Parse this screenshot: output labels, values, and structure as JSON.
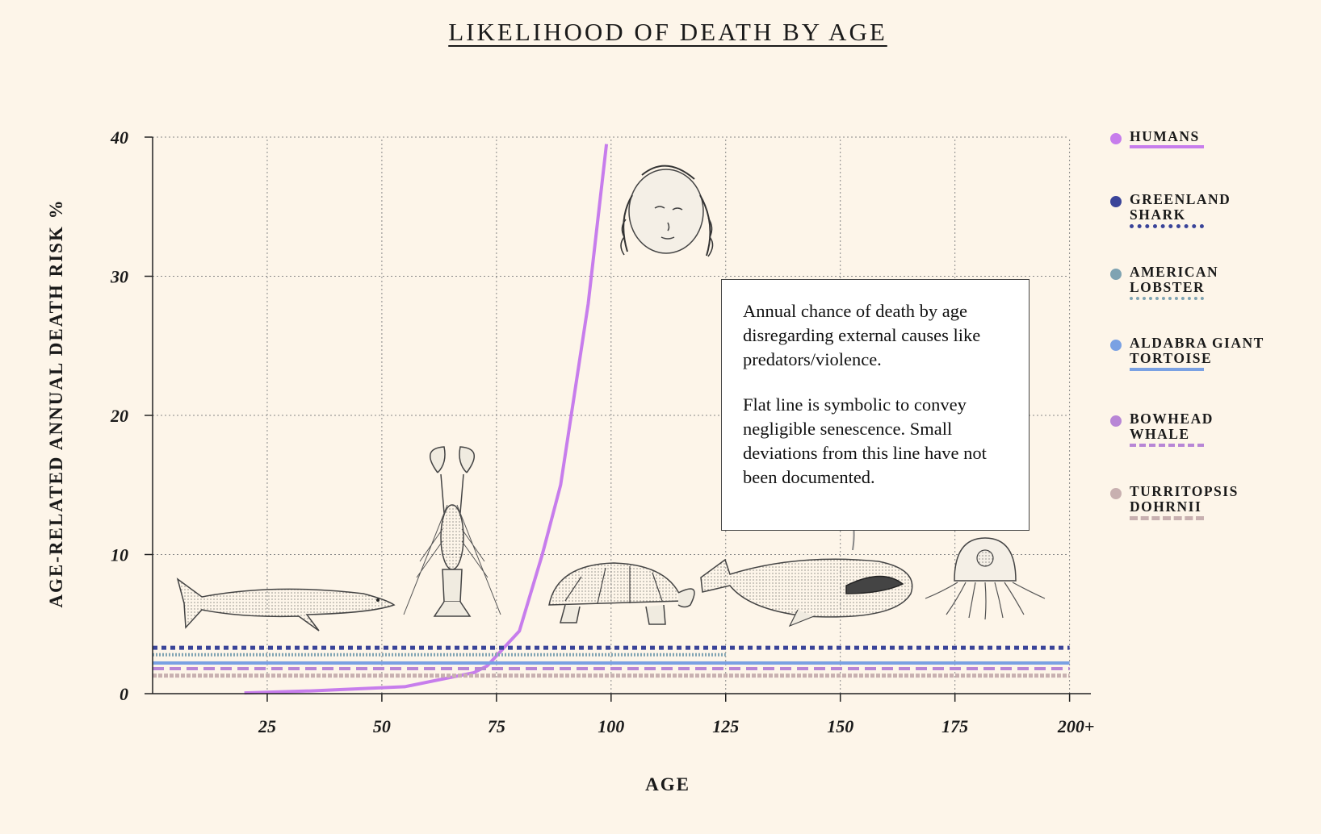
{
  "chart_data": {
    "type": "line",
    "title": "LIKELIHOOD OF DEATH BY AGE",
    "xlabel": "AGE",
    "ylabel": "AGE-RELATED ANNUAL DEATH RISK %",
    "xlim": [
      0,
      205
    ],
    "ylim": [
      0,
      40
    ],
    "x_ticks": [
      25,
      50,
      75,
      100,
      125,
      150,
      175,
      200
    ],
    "x_tick_labels": [
      "25",
      "50",
      "75",
      "100",
      "125",
      "150",
      "175",
      "200+"
    ],
    "y_ticks": [
      0,
      10,
      20,
      30,
      40
    ],
    "y_tick_labels": [
      "0",
      "10",
      "20",
      "30",
      "40"
    ],
    "grid": true,
    "legend_position": "right",
    "series": [
      {
        "name": "HUMANS",
        "color": "#c77dec",
        "style": "solid",
        "x": [
          20,
          35,
          55,
          70,
          73,
          80,
          85,
          89,
          95,
          99
        ],
        "y": [
          0.05,
          0.2,
          0.5,
          1.5,
          2.0,
          4.5,
          10.0,
          15.0,
          28.0,
          39.5
        ]
      },
      {
        "name": "GREENLAND SHARK",
        "color": "#3a4499",
        "style": "dotted-square",
        "x": [
          0,
          200
        ],
        "y": [
          3.3,
          3.3
        ]
      },
      {
        "name": "AMERICAN LOBSTER",
        "color": "#7fa3b2",
        "style": "dotted",
        "x": [
          0,
          125
        ],
        "y": [
          2.8,
          2.8
        ]
      },
      {
        "name": "ALDABRA GIANT TORTOISE",
        "color": "#7aa1e3",
        "style": "solid",
        "x": [
          0,
          200
        ],
        "y": [
          2.2,
          2.2
        ]
      },
      {
        "name": "BOWHEAD WHALE",
        "color": "#b886d6",
        "style": "dashed",
        "x": [
          0,
          200
        ],
        "y": [
          1.8,
          1.8
        ]
      },
      {
        "name": "TURRITOPSIS DOHRNII",
        "color": "#c8b0b0",
        "style": "dashed-double",
        "x": [
          0,
          200
        ],
        "y": [
          1.3,
          1.3
        ]
      }
    ],
    "annotation": [
      "Annual chance of death by age disregarding external causes like predators/violence.",
      "Flat line is symbolic to convey negligible senescence. Small deviations from this line have not been documented."
    ]
  },
  "legend": [
    {
      "label": "HUMANS",
      "color": "#c77dec",
      "style": "solid"
    },
    {
      "label": "GREENLAND SHARK",
      "color": "#3a4499",
      "style": "dotted-square"
    },
    {
      "label": "AMERICAN LOBSTER",
      "color": "#7fa3b2",
      "style": "dotted"
    },
    {
      "label": "ALDABRA GIANT TORTOISE",
      "color": "#7aa1e3",
      "style": "solid"
    },
    {
      "label": "BOWHEAD WHALE",
      "color": "#b886d6",
      "style": "dashed"
    },
    {
      "label": "TURRITOPSIS DOHRNII",
      "color": "#c8b0b0",
      "style": "dashed-double"
    }
  ]
}
